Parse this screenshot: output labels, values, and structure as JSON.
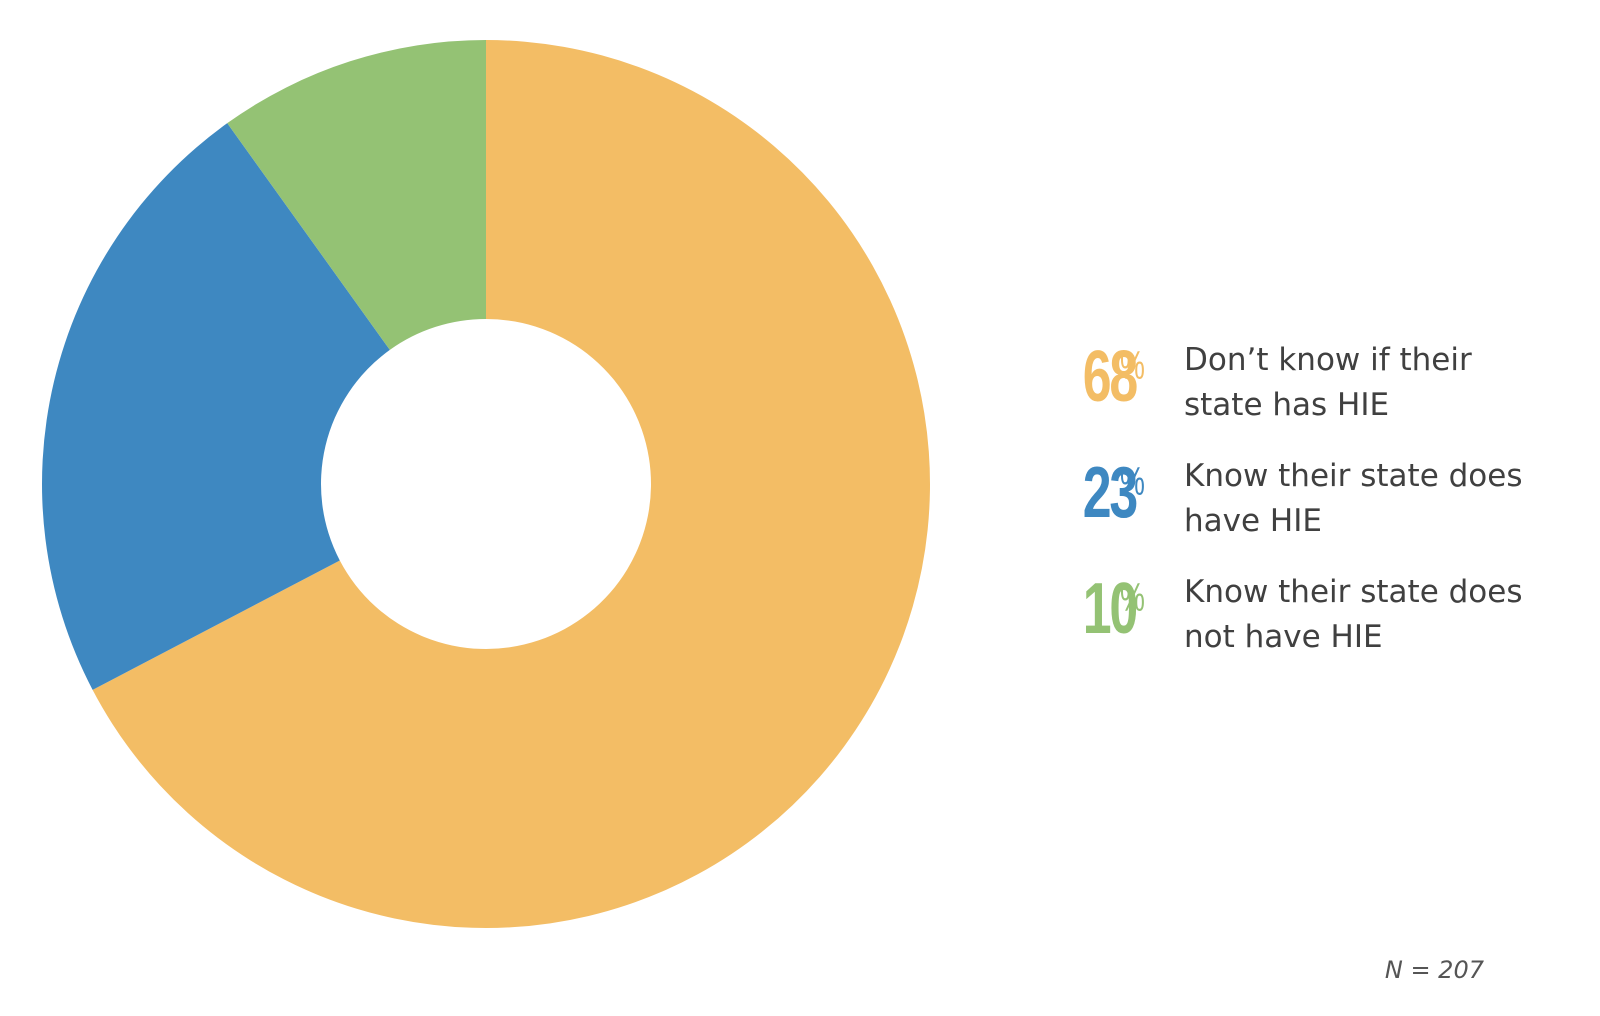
{
  "chart_data": {
    "type": "pie",
    "style": "donut",
    "categories": [
      "Don’t know if their state has HIE",
      "Know their state does have HIE",
      "Know their state does not have HIE"
    ],
    "values": [
      68,
      23,
      10
    ],
    "unit": "%",
    "colors": [
      "#F3BD65",
      "#3E88C1",
      "#94C274"
    ],
    "legend": "right",
    "note": "N = 207"
  },
  "legend": [
    {
      "percent": "68",
      "sign": "%",
      "line1": "Don’t know if their",
      "line2": "state has HIE",
      "color": "#F3BD65"
    },
    {
      "percent": "23",
      "sign": "%",
      "line1": "Know their state does",
      "line2": "have HIE",
      "color": "#3E88C1"
    },
    {
      "percent": "10",
      "sign": "%",
      "line1": "Know their state does",
      "line2": "not have HIE",
      "color": "#94C274"
    }
  ],
  "footnote": "N = 207"
}
